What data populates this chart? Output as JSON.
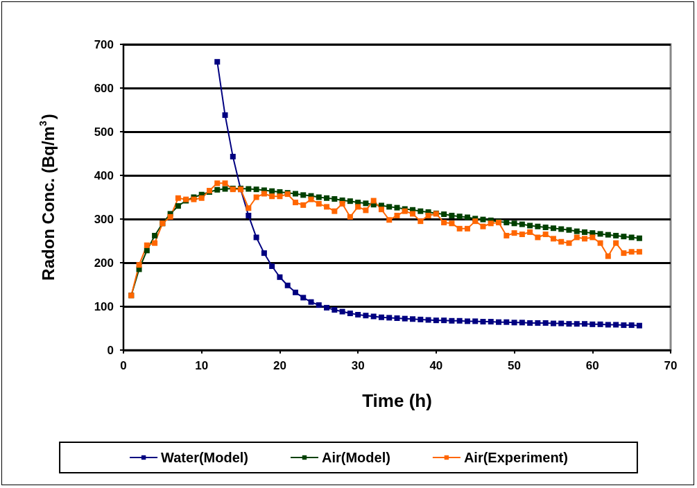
{
  "chart_data": {
    "type": "line",
    "xlabel": "Time (h)",
    "ylabel": "Radon Conc. (Bq/m$^{3}$)",
    "xlim": [
      0,
      70
    ],
    "xticks": [
      0,
      10,
      20,
      30,
      40,
      50,
      60,
      70
    ],
    "ylim": [
      0,
      700
    ],
    "yticks": [
      0,
      100,
      200,
      300,
      400,
      500,
      600,
      700
    ],
    "grid": "y",
    "legend": "bottom",
    "marker": "square",
    "line_style": "solid",
    "series": [
      {
        "name": "Water(Model)",
        "color": "#000080",
        "x": [
          12,
          13,
          14,
          15,
          16,
          17,
          18,
          19,
          20,
          21,
          22,
          23,
          24,
          25,
          26,
          27,
          28,
          29,
          30,
          31,
          32,
          33,
          34,
          35,
          36,
          37,
          38,
          39,
          40,
          41,
          42,
          43,
          44,
          45,
          46,
          47,
          48,
          49,
          50,
          51,
          52,
          53,
          54,
          55,
          56,
          57,
          58,
          59,
          60,
          61,
          62,
          63,
          64,
          65,
          66
        ],
        "values": [
          660,
          538,
          443,
          368,
          308,
          258,
          222,
          192,
          167,
          148,
          132,
          120,
          110,
          103,
          97,
          92,
          88,
          84,
          81,
          79,
          77,
          75,
          74,
          73,
          72,
          71,
          70,
          69,
          68,
          68,
          67,
          67,
          66,
          66,
          65,
          65,
          64,
          64,
          63,
          63,
          62,
          62,
          62,
          61,
          61,
          60,
          60,
          60,
          59,
          59,
          58,
          58,
          57,
          57,
          56
        ]
      },
      {
        "name": "Air(Model)",
        "color": "#004000",
        "x": [
          1,
          2,
          3,
          4,
          5,
          6,
          7,
          8,
          9,
          10,
          11,
          12,
          13,
          14,
          15,
          16,
          17,
          18,
          19,
          20,
          21,
          22,
          23,
          24,
          25,
          26,
          27,
          28,
          29,
          30,
          31,
          32,
          33,
          34,
          35,
          36,
          37,
          38,
          39,
          40,
          41,
          42,
          43,
          44,
          45,
          46,
          47,
          48,
          49,
          50,
          51,
          52,
          53,
          54,
          55,
          56,
          57,
          58,
          59,
          60,
          61,
          62,
          63,
          64,
          65,
          66
        ],
        "values": [
          125,
          185,
          228,
          262,
          290,
          312,
          330,
          342,
          350,
          356,
          362,
          367,
          369,
          370,
          370,
          369,
          368,
          366,
          364,
          362,
          360,
          358,
          355,
          353,
          350,
          348,
          346,
          343,
          341,
          338,
          336,
          333,
          331,
          328,
          326,
          323,
          321,
          318,
          316,
          313,
          311,
          308,
          306,
          304,
          301,
          299,
          297,
          294,
          292,
          290,
          288,
          285,
          283,
          281,
          279,
          277,
          275,
          272,
          270,
          268,
          266,
          264,
          262,
          260,
          258,
          256
        ]
      },
      {
        "name": "Air(Experiment)",
        "color": "#ff6600",
        "x": [
          1,
          2,
          3,
          4,
          5,
          6,
          7,
          8,
          9,
          10,
          11,
          12,
          13,
          14,
          15,
          16,
          17,
          18,
          19,
          20,
          21,
          22,
          23,
          24,
          25,
          26,
          27,
          28,
          29,
          30,
          31,
          32,
          33,
          34,
          35,
          36,
          37,
          38,
          39,
          40,
          41,
          42,
          43,
          44,
          45,
          46,
          47,
          48,
          49,
          50,
          51,
          52,
          53,
          54,
          55,
          56,
          57,
          58,
          59,
          60,
          61,
          62,
          63,
          64,
          65,
          66
        ],
        "values": [
          125,
          195,
          240,
          245,
          290,
          305,
          348,
          345,
          345,
          348,
          365,
          382,
          382,
          368,
          368,
          325,
          350,
          358,
          352,
          352,
          357,
          338,
          332,
          345,
          335,
          328,
          318,
          335,
          305,
          328,
          320,
          342,
          322,
          298,
          308,
          318,
          312,
          295,
          308,
          312,
          292,
          290,
          278,
          278,
          295,
          283,
          290,
          292,
          262,
          268,
          265,
          270,
          258,
          265,
          255,
          248,
          245,
          258,
          255,
          258,
          245,
          215,
          245,
          222,
          225,
          225
        ]
      }
    ]
  }
}
